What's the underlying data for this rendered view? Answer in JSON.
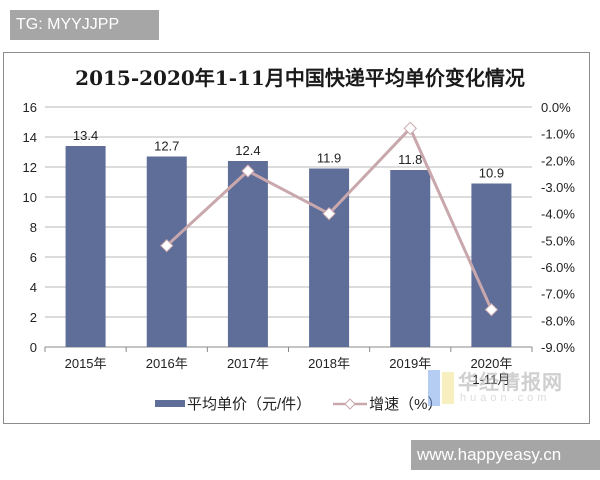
{
  "tags": {
    "top": "TG: MYYJJPP",
    "bottom": "www.happyeasy.cn"
  },
  "watermark": {
    "text": "华经情报网",
    "sub": "huaon.com"
  },
  "chart_data": {
    "type": "bar+line",
    "title": "2015-2020年1-11月中国快递平均单价变化情况",
    "categories": [
      "2015年",
      "2016年",
      "2017年",
      "2018年",
      "2019年",
      "2020年\n1-11月"
    ],
    "series": [
      {
        "name": "平均单价（元/件）",
        "type": "bar",
        "axis": "left",
        "color": "#5e6e99",
        "values": [
          13.4,
          12.7,
          12.4,
          11.9,
          11.8,
          10.9
        ],
        "data_labels": [
          "13.4",
          "12.7",
          "12.4",
          "11.9",
          "11.8",
          "10.9"
        ]
      },
      {
        "name": "增速（%）",
        "type": "line",
        "axis": "right",
        "color": "#c9a8ad",
        "marker": "diamond",
        "values": [
          null,
          -5.2,
          -2.4,
          -4.0,
          -0.8,
          -7.6
        ]
      }
    ],
    "left_axis": {
      "ylim": [
        0,
        16
      ],
      "ticks": [
        "0",
        "2",
        "4",
        "6",
        "8",
        "10",
        "12",
        "14",
        "16"
      ]
    },
    "right_axis": {
      "ylim": [
        -9.0,
        0.0
      ],
      "ticks": [
        "0.0%",
        "-1.0%",
        "-2.0%",
        "-3.0%",
        "-4.0%",
        "-5.0%",
        "-6.0%",
        "-7.0%",
        "-8.0%",
        "-9.0%"
      ]
    },
    "grid": true,
    "legend_position": "bottom",
    "xlabel": "",
    "ylabel": ""
  }
}
